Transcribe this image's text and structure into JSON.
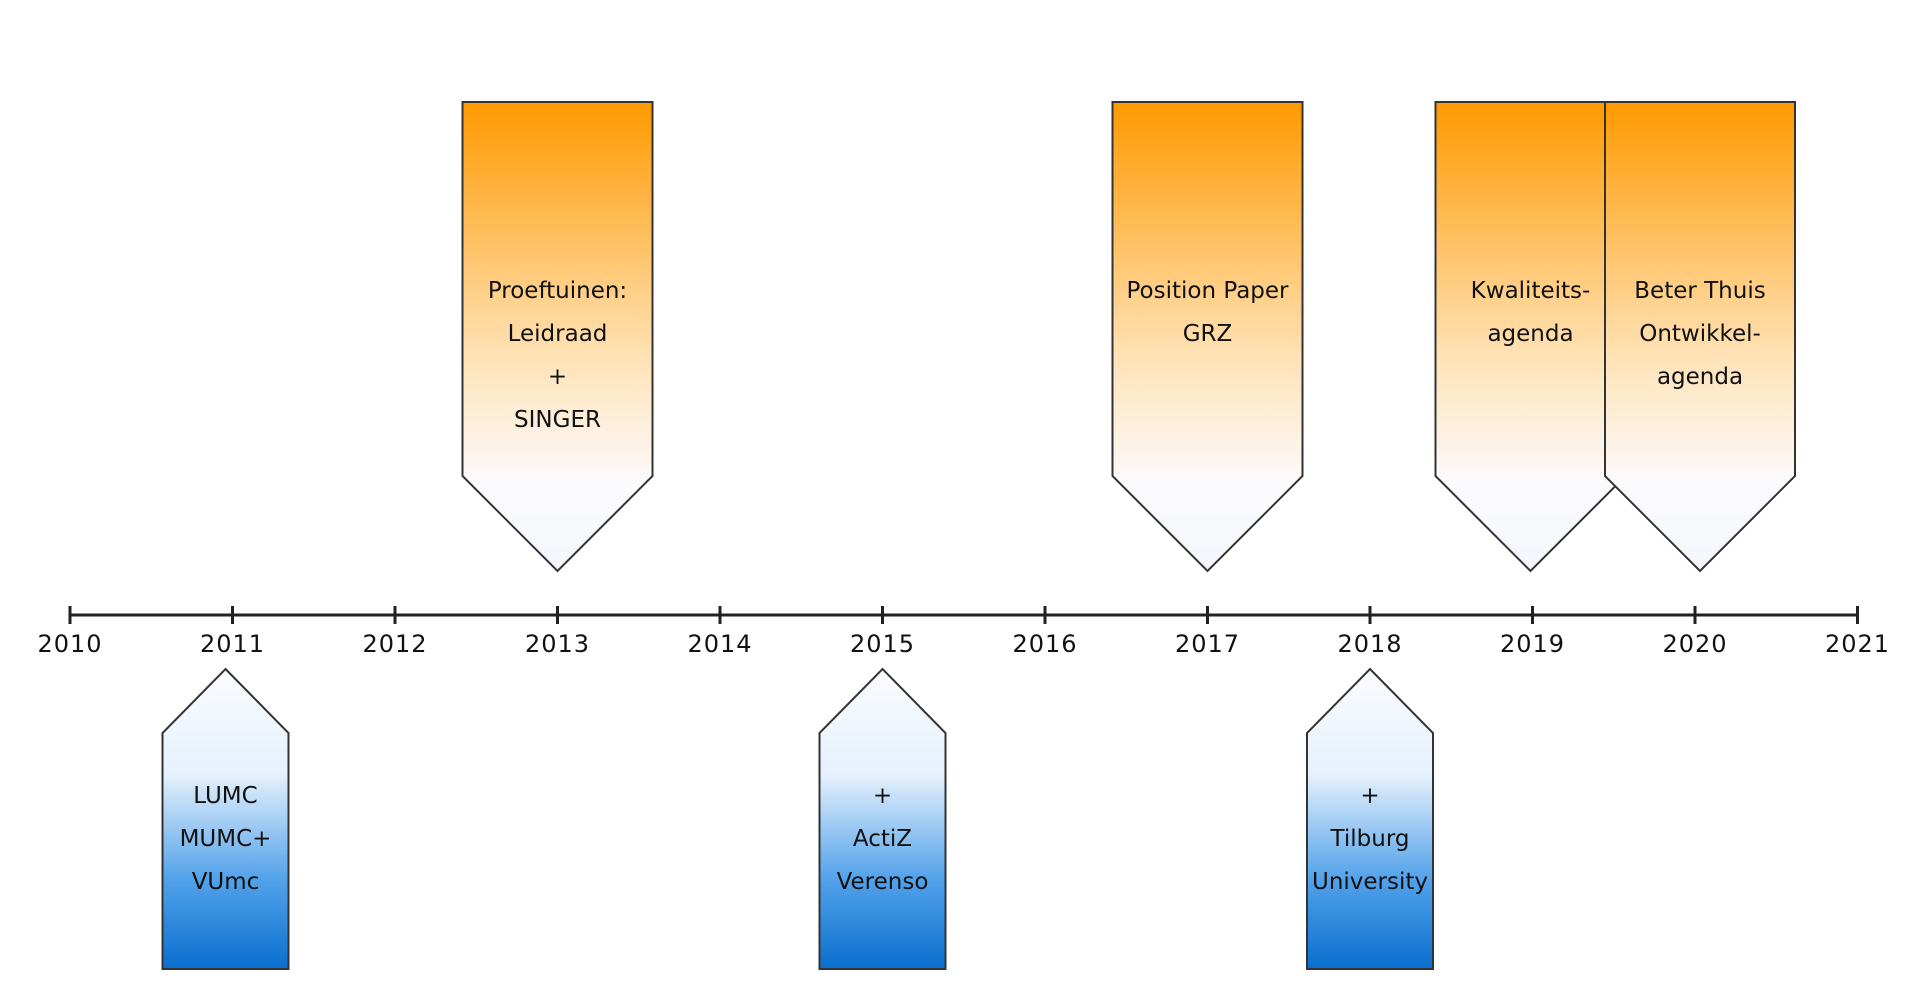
{
  "timeline": {
    "years": [
      "2010",
      "2011",
      "2012",
      "2013",
      "2014",
      "2015",
      "2016",
      "2017",
      "2018",
      "2019",
      "2020",
      "2021"
    ]
  },
  "colors": {
    "top_marker_accent": "#ff9900",
    "bottom_marker_accent": "#0a6fce",
    "outline": "#333333",
    "axis": "#222222"
  },
  "top_markers": [
    {
      "id": "proeftuinen",
      "year": "2013",
      "lines": [
        "Proeftuinen:",
        "Leidraad",
        "+",
        "SINGER"
      ]
    },
    {
      "id": "position-paper",
      "year": "2017",
      "lines": [
        "Position Paper",
        "GRZ"
      ]
    },
    {
      "id": "kwaliteitsagenda",
      "year": "2019",
      "lines": [
        "Kwaliteits-",
        "agenda"
      ]
    },
    {
      "id": "beter-thuis",
      "year": "2020",
      "lines": [
        "Beter Thuis",
        "Ontwikkel-",
        "agenda"
      ]
    }
  ],
  "bottom_markers": [
    {
      "id": "lumc",
      "year": "2011",
      "lines": [
        "LUMC",
        "MUMC+",
        "VUmc"
      ]
    },
    {
      "id": "actiz",
      "year": "2015",
      "lines": [
        "+",
        "ActiZ",
        "Verenso"
      ]
    },
    {
      "id": "tilburg",
      "year": "2018",
      "lines": [
        "+",
        "Tilburg",
        "University"
      ]
    }
  ]
}
